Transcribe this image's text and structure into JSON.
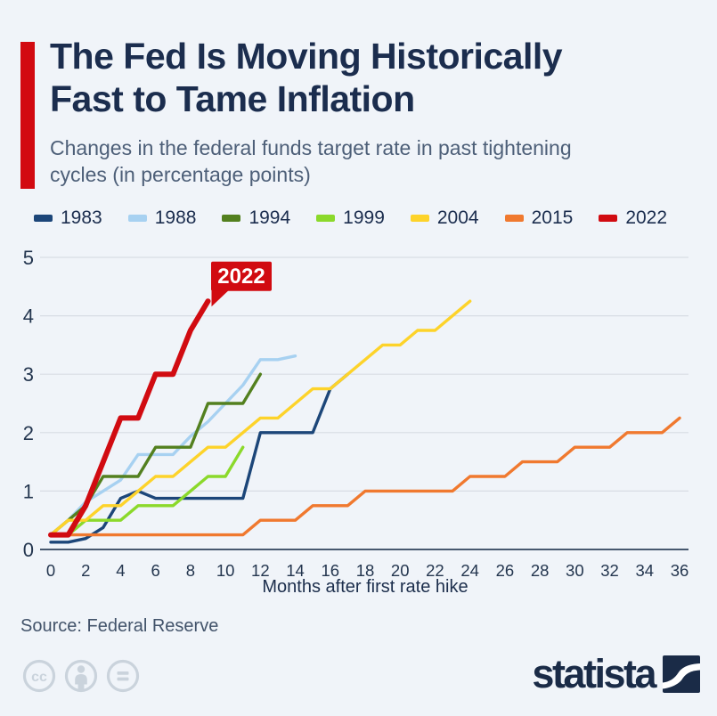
{
  "header": {
    "title_line1": "The Fed Is Moving Historically",
    "title_line2": "Fast to Tame Inflation",
    "subtitle": "Changes in the federal funds target rate in past tightening cycles (in percentage points)",
    "accent_color": "#d20a11"
  },
  "chart_data": {
    "type": "line",
    "title": "The Fed Is Moving Historically Fast to Tame Inflation",
    "subtitle": "Changes in the federal funds target rate in past tightening cycles (in percentage points)",
    "xlabel": "Months after first rate hike",
    "ylabel": "",
    "xlim": [
      0,
      36
    ],
    "ylim": [
      0,
      5
    ],
    "x_ticks": [
      0,
      2,
      4,
      6,
      8,
      10,
      12,
      14,
      16,
      18,
      20,
      22,
      24,
      26,
      28,
      30,
      32,
      34,
      36
    ],
    "y_ticks": [
      0,
      1,
      2,
      3,
      4,
      5
    ],
    "grid": "horizontal",
    "legend_position": "top",
    "colors": {
      "grid": "#d8dde4",
      "axis": "#47586f",
      "tick_text": "#24364f",
      "annotation_bg": "#d10b11",
      "annotation_text": "#ffffff"
    },
    "annotation": {
      "label": "2022",
      "month": 9,
      "value": 4.25
    },
    "series": [
      {
        "name": "1983",
        "color": "#1c4679",
        "values": [
          0.125,
          0.125,
          0.1875,
          0.375,
          0.875,
          1,
          0.875,
          0.875,
          0.875,
          0.875,
          0.875,
          0.875,
          2,
          2,
          2,
          2,
          2.75,
          3
        ]
      },
      {
        "name": "1988",
        "color": "#a7d1f1",
        "values": [
          0.25,
          0.5,
          0.8125,
          1,
          1.1875,
          1.625,
          1.625,
          1.625,
          1.9375,
          2.1875,
          2.5,
          2.8125,
          3.25,
          3.25,
          3.3125
        ]
      },
      {
        "name": "1994",
        "color": "#53801f",
        "values": [
          0.25,
          0.5,
          0.75,
          1.25,
          1.25,
          1.25,
          1.75,
          1.75,
          1.75,
          2.5,
          2.5,
          2.5,
          3
        ]
      },
      {
        "name": "1999",
        "color": "#8bd92b",
        "values": [
          0.25,
          0.25,
          0.5,
          0.5,
          0.5,
          0.75,
          0.75,
          0.75,
          1,
          1.25,
          1.25,
          1.75
        ]
      },
      {
        "name": "2004",
        "color": "#fdd32a",
        "values": [
          0.25,
          0.5,
          0.5,
          0.75,
          0.75,
          1,
          1.25,
          1.25,
          1.5,
          1.75,
          1.75,
          2,
          2.25,
          2.25,
          2.5,
          2.75,
          2.75,
          3,
          3.25,
          3.5,
          3.5,
          3.75,
          3.75,
          4,
          4.25
        ]
      },
      {
        "name": "2015",
        "color": "#f0792f",
        "values": [
          0.25,
          0.25,
          0.25,
          0.25,
          0.25,
          0.25,
          0.25,
          0.25,
          0.25,
          0.25,
          0.25,
          0.25,
          0.5,
          0.5,
          0.5,
          0.75,
          0.75,
          0.75,
          1,
          1,
          1,
          1,
          1,
          1,
          1.25,
          1.25,
          1.25,
          1.5,
          1.5,
          1.5,
          1.75,
          1.75,
          1.75,
          2,
          2,
          2,
          2.25
        ]
      },
      {
        "name": "2022",
        "color": "#d10b11",
        "values": [
          0.25,
          0.25,
          0.75,
          1.5,
          2.25,
          2.25,
          3,
          3,
          3.75,
          4.25
        ]
      }
    ]
  },
  "footer": {
    "source": "Source: Federal Reserve",
    "brand": "statista",
    "icons": [
      "cc-icon",
      "attribution-icon",
      "equal-icon"
    ]
  }
}
